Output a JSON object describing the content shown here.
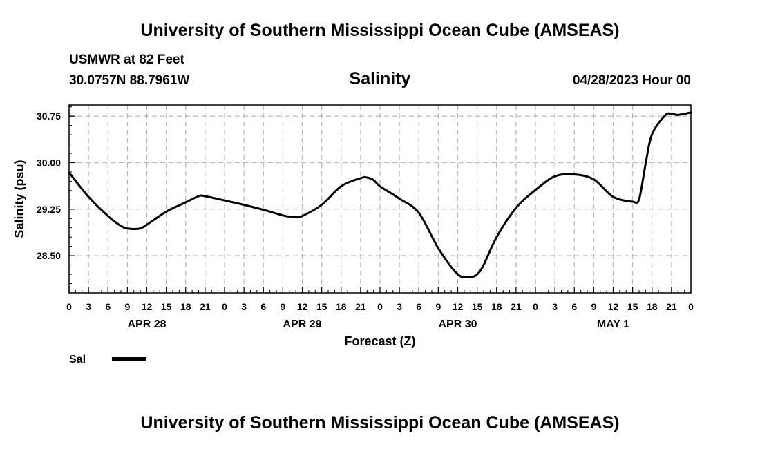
{
  "page": {
    "title_top": "University of Southern Mississippi Ocean Cube (AMSEAS)",
    "title_bottom": "University of Southern Mississippi Ocean Cube (AMSEAS)",
    "station": "USMWR at 82 Feet",
    "coords": "30.0757N  88.7961W",
    "variable": "Salinity",
    "datetime": "04/28/2023 Hour 00"
  },
  "chart_data": {
    "type": "line",
    "title": "Salinity",
    "ylabel": "Salinity (psu)",
    "xlabel": "Forecast (Z)",
    "ylim": [
      27.9,
      30.93
    ],
    "xlim": [
      0,
      96
    ],
    "y_ticks": [
      28.5,
      29.25,
      30.0,
      30.75
    ],
    "y_tick_labels": [
      "28.50",
      "29.25",
      "30.00",
      "30.75"
    ],
    "x_ticks": [
      0,
      3,
      6,
      9,
      12,
      15,
      18,
      21,
      24,
      27,
      30,
      33,
      36,
      39,
      42,
      45,
      48,
      51,
      54,
      57,
      60,
      63,
      66,
      69,
      72,
      75,
      78,
      81,
      84,
      87,
      90,
      93,
      96
    ],
    "x_tick_labels": [
      "0",
      "3",
      "6",
      "9",
      "12",
      "15",
      "18",
      "21",
      "0",
      "3",
      "6",
      "9",
      "12",
      "15",
      "18",
      "21",
      "0",
      "3",
      "6",
      "9",
      "12",
      "15",
      "18",
      "21",
      "0",
      "3",
      "6",
      "9",
      "12",
      "15",
      "18",
      "21",
      "0"
    ],
    "day_labels": [
      {
        "label": "APR 28",
        "x": 12
      },
      {
        "label": "APR 29",
        "x": 36
      },
      {
        "label": "APR 30",
        "x": 60
      },
      {
        "label": "MAY 1",
        "x": 84
      }
    ],
    "grid": true,
    "legend": "bottom-left",
    "series": [
      {
        "name": "Sal",
        "color": "#000000",
        "x": [
          0,
          3,
          6,
          8,
          9,
          10,
          11,
          12,
          15,
          18,
          20,
          21,
          24,
          27,
          30,
          33,
          34,
          35,
          36,
          39,
          42,
          45,
          46,
          47,
          48,
          51,
          54,
          57,
          60,
          62,
          63,
          64,
          66,
          69,
          72,
          75,
          78,
          81,
          84,
          87,
          88,
          89,
          90,
          92,
          93,
          94,
          96
        ],
        "y": [
          29.84,
          29.45,
          29.14,
          28.98,
          28.94,
          28.93,
          28.94,
          29.0,
          29.21,
          29.36,
          29.46,
          29.46,
          29.39,
          29.32,
          29.24,
          29.15,
          29.13,
          29.12,
          29.14,
          29.32,
          29.62,
          29.75,
          29.76,
          29.72,
          29.62,
          29.42,
          29.19,
          28.62,
          28.2,
          28.16,
          28.2,
          28.35,
          28.8,
          29.27,
          29.56,
          29.78,
          29.81,
          29.73,
          29.45,
          29.37,
          29.41,
          29.98,
          30.46,
          30.76,
          30.79,
          30.77,
          30.81
        ]
      }
    ]
  }
}
